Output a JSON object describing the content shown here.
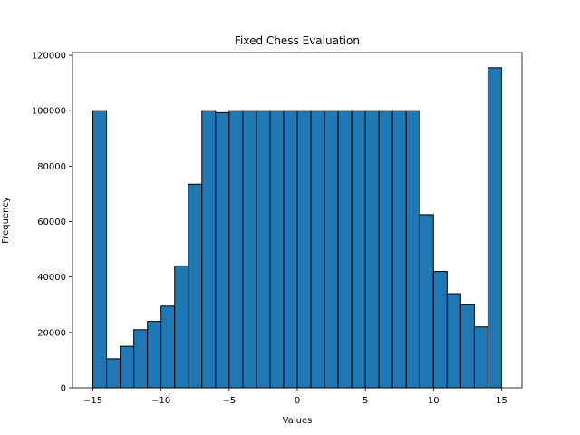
{
  "chart_data": {
    "type": "bar",
    "title": "Fixed Chess Evaluation",
    "xlabel": "Values",
    "ylabel": "Frequency",
    "bin_edges": [
      -15,
      -14,
      -13,
      -12,
      -11,
      -10,
      -9,
      -8,
      -7,
      -6,
      -5,
      -4,
      -3,
      -2,
      -1,
      0,
      1,
      2,
      3,
      4,
      5,
      6,
      7,
      8,
      9,
      10,
      11,
      12,
      13,
      14,
      15
    ],
    "values": [
      100000,
      10500,
      15000,
      21000,
      24000,
      29500,
      44000,
      73500,
      100000,
      99300,
      100000,
      100000,
      100000,
      100000,
      100000,
      100000,
      100000,
      100000,
      100000,
      100000,
      100000,
      100000,
      100000,
      100000,
      62500,
      42000,
      34000,
      30000,
      22000,
      115500
    ],
    "xlim": [
      -16.5,
      16.5
    ],
    "ylim": [
      0,
      121000
    ],
    "xticks": [
      -15,
      -10,
      -5,
      0,
      5,
      10,
      15
    ],
    "xtick_labels": [
      "−15",
      "−10",
      "−5",
      "0",
      "5",
      "10",
      "15"
    ],
    "yticks": [
      0,
      20000,
      40000,
      60000,
      80000,
      100000,
      120000
    ],
    "ytick_labels": [
      "0",
      "20000",
      "40000",
      "60000",
      "80000",
      "100000",
      "120000"
    ],
    "grid": false,
    "bar_color": "#1f77b4",
    "edge_color": "#000000"
  }
}
